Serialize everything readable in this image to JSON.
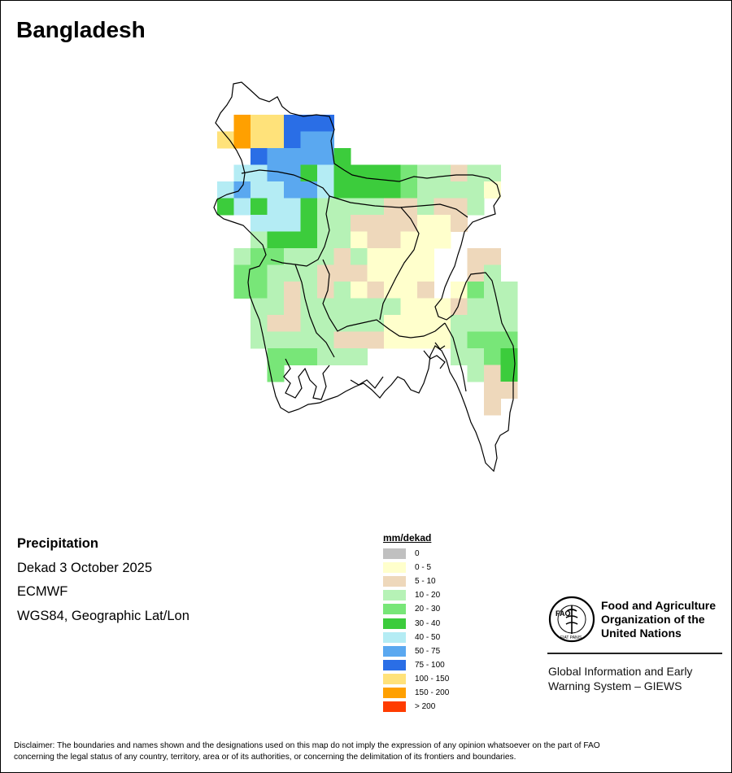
{
  "title": "Bangladesh",
  "info": {
    "variable": "Precipitation",
    "period": "Dekad 3 October 2025",
    "source": "ECMWF",
    "projection": "WGS84, Geographic Lat/Lon"
  },
  "legend": {
    "title": "mm/dekad",
    "classes": [
      {
        "label": "0",
        "color": "#c0c0c0"
      },
      {
        "label": "0 - 5",
        "color": "#ffffcc"
      },
      {
        "label": "5 - 10",
        "color": "#eed8bb"
      },
      {
        "label": "10 - 20",
        "color": "#b6f2b6"
      },
      {
        "label": "20 - 30",
        "color": "#78e678"
      },
      {
        "label": "30 - 40",
        "color": "#3ccc3c"
      },
      {
        "label": "40 - 50",
        "color": "#b4ecf4"
      },
      {
        "label": "50 - 75",
        "color": "#5aa8f0"
      },
      {
        "label": "75 - 100",
        "color": "#2a6ee6"
      },
      {
        "label": "100 - 150",
        "color": "#ffe27a"
      },
      {
        "label": "150 - 200",
        "color": "#ffa000"
      },
      {
        "label": "> 200",
        "color": "#ff3c00"
      }
    ]
  },
  "branding": {
    "org_line1": "Food and Agriculture",
    "org_line2": "Organization of the",
    "org_line3": "United Nations",
    "emblem_text": "FAO",
    "emblem_motto": "FIAT PANIS",
    "giews_line1": "Global Information and Early",
    "giews_line2": "Warning System – GIEWS"
  },
  "disclaimer_line1": "Disclaimer: The boundaries and names shown and the designations used on this map do not imply the expression of any opinion whatsoever on the part of FAO",
  "disclaimer_line2": "concerning the legal status of any country, territory, area or of its authorities, or concerning the delimitation of its frontiers and boundaries."
}
